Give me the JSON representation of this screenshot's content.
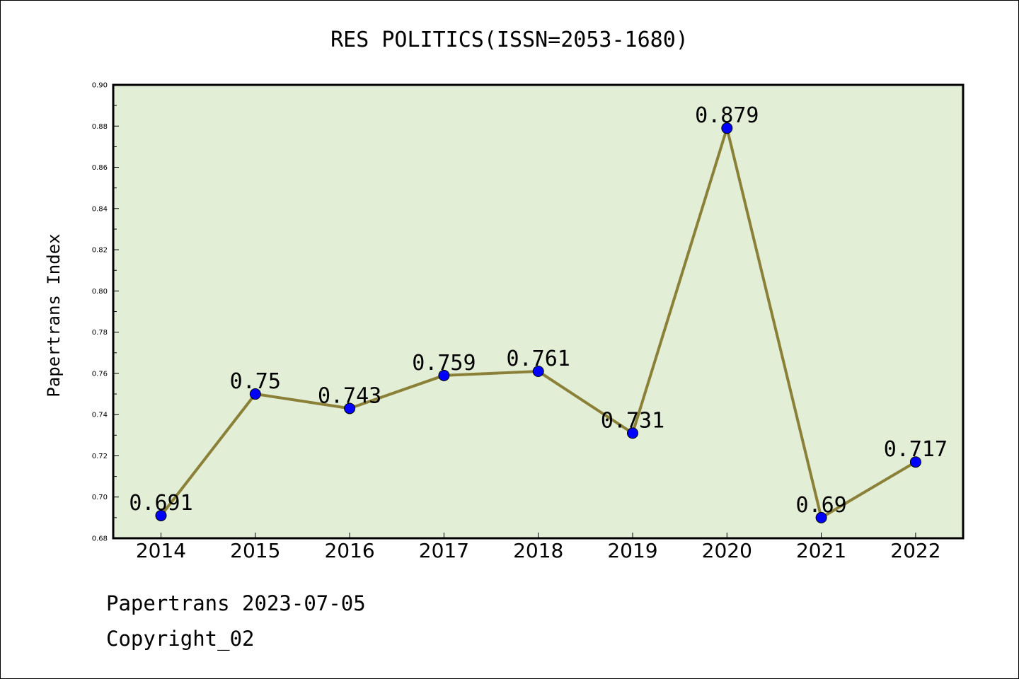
{
  "footer": {
    "date_line": "Papertrans 2023-07-05",
    "copyright_line": "Copyright_02"
  },
  "chart_data": {
    "type": "line",
    "title": "RES POLITICS(ISSN=2053-1680)",
    "xlabel": "",
    "ylabel": "Papertrans Index",
    "categories": [
      "2014",
      "2015",
      "2016",
      "2017",
      "2018",
      "2019",
      "2020",
      "2021",
      "2022"
    ],
    "values": [
      0.691,
      0.75,
      0.743,
      0.759,
      0.761,
      0.731,
      0.879,
      0.69,
      0.717
    ],
    "value_labels": [
      "0.691",
      "0.75",
      "0.743",
      "0.759",
      "0.761",
      "0.731",
      "0.879",
      "0.69",
      "0.717"
    ],
    "ylim": [
      0.68,
      0.9
    ],
    "yticks": [
      0.68,
      0.7,
      0.72,
      0.74,
      0.76,
      0.78,
      0.8,
      0.82,
      0.84,
      0.86,
      0.88,
      0.9
    ],
    "ytick_labels": [
      "0.68",
      "0.70",
      "0.72",
      "0.74",
      "0.76",
      "0.78",
      "0.80",
      "0.82",
      "0.84",
      "0.86",
      "0.88",
      "0.90"
    ],
    "grid": false,
    "legend": "none",
    "colors": {
      "plot_background": "#e2efd6",
      "line": "#8b8038",
      "marker": "#0000ff",
      "axes": "#000000"
    }
  }
}
